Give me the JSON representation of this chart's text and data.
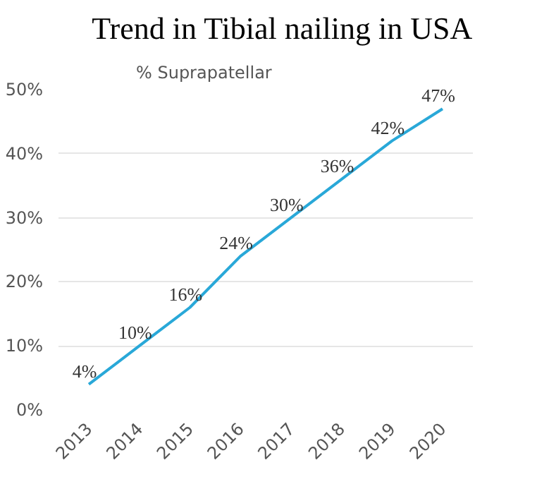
{
  "chart_data": {
    "type": "line",
    "title": "Trend in Tibial nailing in USA",
    "subtitle": "% Suprapatellar",
    "categories": [
      "2013",
      "2014",
      "2015",
      "2016",
      "2017",
      "2018",
      "2019",
      "2020"
    ],
    "series": [
      {
        "color": "#29a8d8",
        "values": [
          4,
          10,
          16,
          24,
          30,
          36,
          42,
          47
        ],
        "value_labels": [
          "4%",
          "10%",
          "16%",
          "24%",
          "30%",
          "36%",
          "42%",
          "47%"
        ]
      }
    ],
    "ylim": [
      0,
      50
    ],
    "yticks": [
      {
        "value": 0,
        "label": "0%"
      },
      {
        "value": 10,
        "label": "10%"
      },
      {
        "value": 20,
        "label": "20%"
      },
      {
        "value": 30,
        "label": "30%"
      },
      {
        "value": 40,
        "label": "40%"
      },
      {
        "value": 50,
        "label": "50%"
      }
    ],
    "grid": "y",
    "marker": "none",
    "line_style": "solid"
  }
}
